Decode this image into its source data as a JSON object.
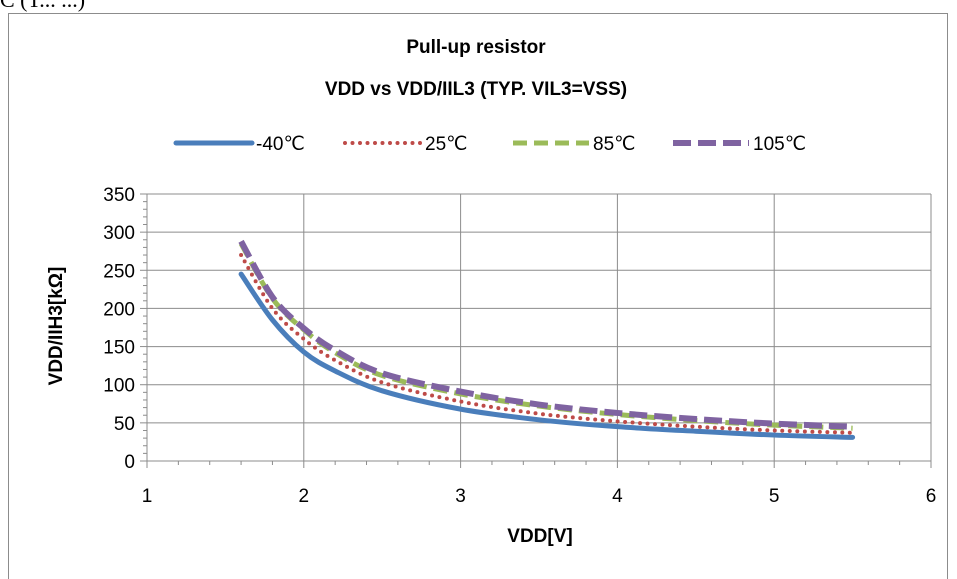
{
  "page": {
    "caption": "C (T... ...)"
  },
  "chart_data": {
    "type": "line",
    "title_line1": "Pull-up resistor",
    "title_line2": "VDD vs VDD/IIL3 (TYP. VIL3=VSS)",
    "xlabel": "VDD[V]",
    "ylabel": "VDD/IIH3[kΩ]",
    "xlim": [
      1,
      6
    ],
    "ylim": [
      0,
      350
    ],
    "xticks": [
      1,
      2,
      3,
      4,
      5,
      6
    ],
    "yticks": [
      0,
      50,
      100,
      150,
      200,
      250,
      300,
      350
    ],
    "grid": true,
    "legend_position": "top",
    "series": [
      {
        "name": "-40℃",
        "color": "#4a7ebb",
        "dash": "solid",
        "x": [
          1.6,
          1.8,
          2.0,
          2.2,
          2.5,
          3.0,
          3.5,
          4.0,
          4.5,
          5.0,
          5.5
        ],
        "y": [
          245,
          185,
          143,
          118,
          92,
          68,
          54,
          45,
          39,
          34,
          31
        ]
      },
      {
        "name": "25℃",
        "color": "#be4b48",
        "dash": "dotted",
        "x": [
          1.6,
          1.8,
          2.0,
          2.2,
          2.5,
          3.0,
          3.5,
          4.0,
          4.5,
          5.0,
          5.5
        ],
        "y": [
          270,
          200,
          160,
          132,
          103,
          78,
          62,
          52,
          45,
          40,
          37
        ]
      },
      {
        "name": "85℃",
        "color": "#9bbb59",
        "dash": "dashed",
        "x": [
          1.6,
          1.8,
          2.0,
          2.2,
          2.5,
          3.0,
          3.5,
          4.0,
          4.5,
          5.0,
          5.5
        ],
        "y": [
          285,
          213,
          172,
          142,
          112,
          88,
          72,
          61,
          53,
          47,
          43
        ]
      },
      {
        "name": "105℃",
        "color": "#7f63a1",
        "dash": "longdash",
        "x": [
          1.6,
          1.8,
          2.0,
          2.2,
          2.5,
          3.0,
          3.5,
          4.0,
          4.5,
          5.0,
          5.5
        ],
        "y": [
          288,
          215,
          174,
          145,
          115,
          91,
          74,
          63,
          55,
          49,
          45
        ]
      }
    ]
  }
}
